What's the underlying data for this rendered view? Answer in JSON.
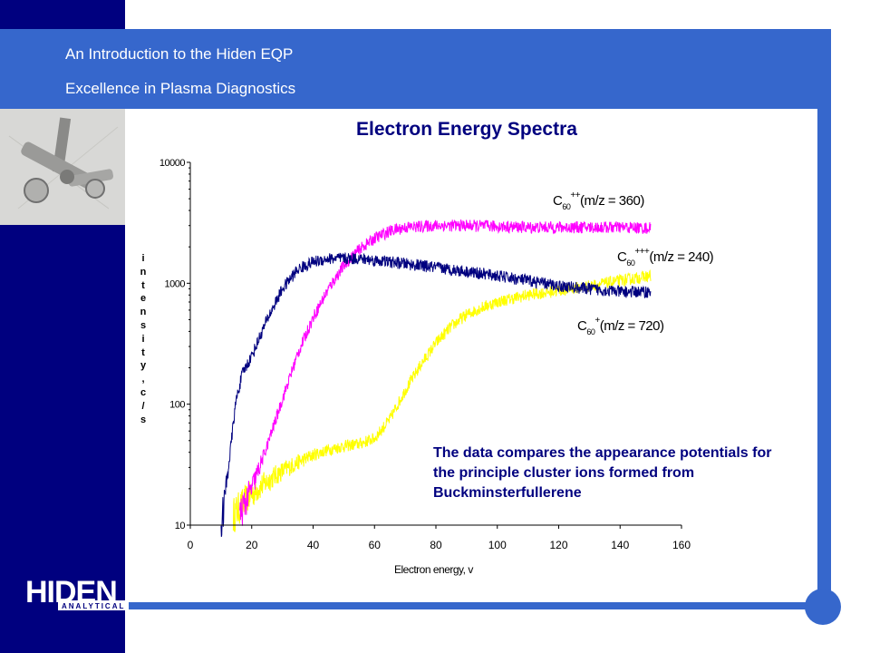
{
  "header": {
    "line1": "An Introduction to the Hiden EQP",
    "line2": "Excellence in Plasma Diagnostics"
  },
  "slide_title": "Electron Energy Spectra",
  "note": "The data compares the appearance potentials for the principle cluster ions formed from Buckminsterfullerene",
  "logo": {
    "text": "HIDEN",
    "sub": "ANALYTICAL"
  },
  "colors": {
    "navy": "#00007f",
    "blue": "#3667cc"
  },
  "chart_data": {
    "type": "line",
    "title": "",
    "xlabel": "Electron energy, v",
    "ylabel": "intensity, c/s",
    "x_ticks": [
      0,
      20,
      40,
      60,
      80,
      100,
      120,
      140,
      160
    ],
    "y_ticks": [
      10,
      100,
      1000,
      10000
    ],
    "y_scale": "log",
    "xlim": [
      0,
      160
    ],
    "ylim": [
      10,
      10000
    ],
    "grid": false,
    "series": [
      {
        "name": "C60++ (m/z = 360)",
        "label_base": "C",
        "label_sub": "60",
        "label_sup": "++",
        "label_rest": "(m/z = 360)",
        "color": "#ff00ff",
        "x": [
          16,
          20,
          25,
          30,
          35,
          40,
          45,
          50,
          55,
          60,
          65,
          70,
          80,
          90,
          100,
          110,
          120,
          130,
          140,
          150
        ],
        "y": [
          12,
          20,
          45,
          110,
          260,
          520,
          900,
          1400,
          1900,
          2350,
          2700,
          2900,
          3000,
          3000,
          2950,
          2900,
          2900,
          2900,
          2900,
          2850
        ]
      },
      {
        "name": "C60+++ (m/z = 240)",
        "label_base": "C",
        "label_sub": "60",
        "label_sup": "+++",
        "label_rest": "(m/z = 240)",
        "color": "#ffff00",
        "x": [
          14,
          18,
          22,
          26,
          30,
          35,
          40,
          45,
          50,
          55,
          60,
          65,
          70,
          75,
          80,
          85,
          90,
          95,
          100,
          105,
          110,
          120,
          130,
          140,
          150
        ],
        "y": [
          12,
          16,
          20,
          24,
          28,
          33,
          38,
          42,
          45,
          47,
          52,
          75,
          130,
          210,
          320,
          440,
          550,
          630,
          700,
          750,
          800,
          870,
          950,
          1050,
          1150
        ]
      },
      {
        "name": "C60+ (m/z = 720)",
        "label_base": "C",
        "label_sub": "60",
        "label_sup": "+",
        "label_rest": "(m/z = 720)",
        "color": "#00007f",
        "x": [
          10,
          11,
          12,
          13,
          14,
          15,
          17,
          20,
          25,
          30,
          35,
          40,
          45,
          50,
          55,
          60,
          70,
          80,
          90,
          100,
          110,
          120,
          130,
          140,
          150
        ],
        "y": [
          10,
          15,
          25,
          40,
          70,
          110,
          180,
          250,
          500,
          900,
          1300,
          1500,
          1600,
          1600,
          1600,
          1550,
          1450,
          1350,
          1250,
          1150,
          1050,
          950,
          900,
          850,
          850
        ]
      }
    ]
  }
}
